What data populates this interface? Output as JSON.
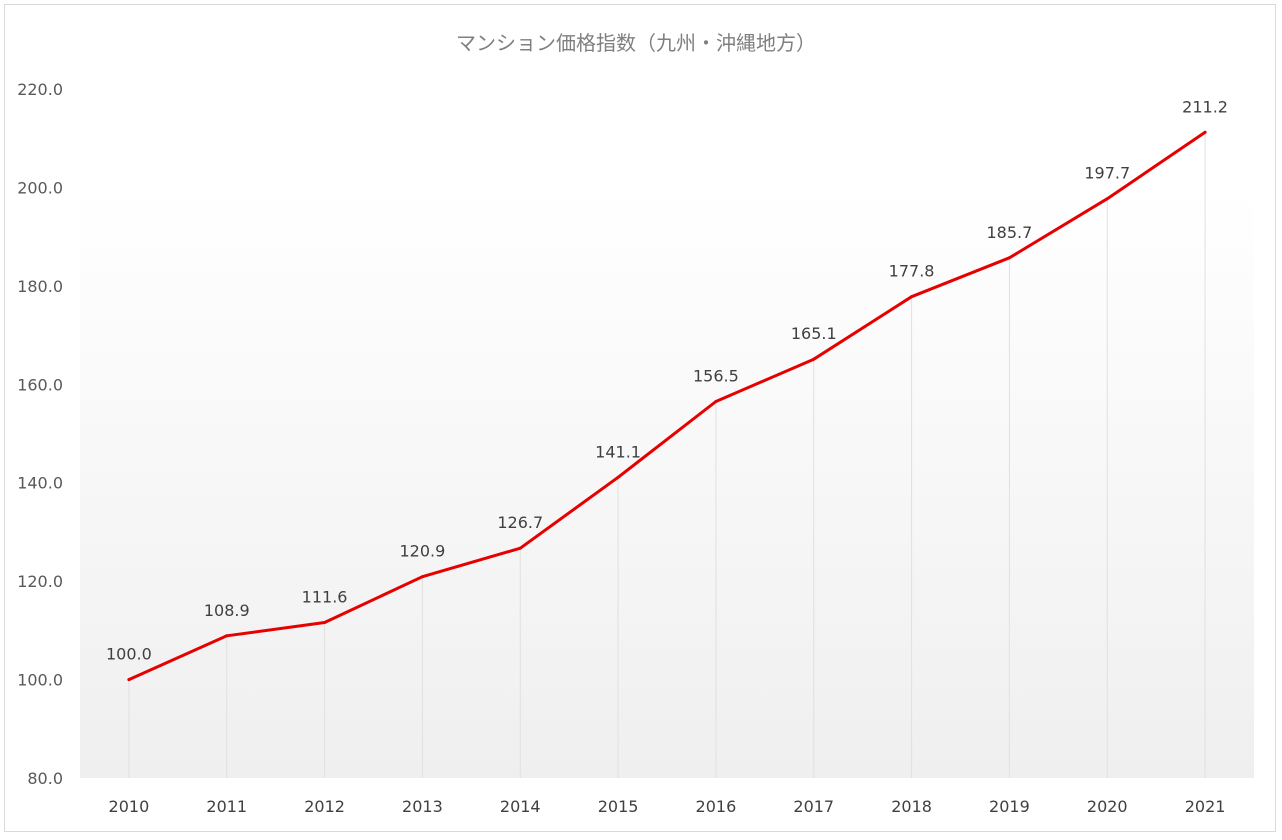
{
  "chart_data": {
    "type": "line",
    "title": "マンション価格指数（九州・沖縄地方）",
    "xlabel": "",
    "ylabel": "",
    "categories": [
      "2010",
      "2011",
      "2012",
      "2013",
      "2014",
      "2015",
      "2016",
      "2017",
      "2018",
      "2019",
      "2020",
      "2021"
    ],
    "series": [
      {
        "values": [
          100.0,
          108.9,
          111.6,
          120.9,
          126.7,
          141.1,
          156.5,
          165.1,
          177.8,
          185.7,
          197.7,
          211.2
        ],
        "data_labels": [
          "100.0",
          "108.9",
          "111.6",
          "120.9",
          "126.7",
          "141.1",
          "156.5",
          "165.1",
          "177.8",
          "185.7",
          "197.7",
          "211.2"
        ],
        "color": "#e60000"
      }
    ],
    "ylim": [
      80,
      220
    ],
    "yticks": [
      80,
      100,
      120,
      140,
      160,
      180,
      200,
      220
    ],
    "ytick_labels": [
      "80.0",
      "100.0",
      "120.0",
      "140.0",
      "160.0",
      "180.0",
      "200.0",
      "220.0"
    ],
    "grid": false,
    "drop_lines": true,
    "legend": "none",
    "plot_background": "gradient white to light gray",
    "colors": {
      "title": "#7f7f7f",
      "axis_text": "#595959",
      "line": "#e60000",
      "drop_line": "#e0e0e0",
      "frame": "#d9d9d9"
    }
  }
}
